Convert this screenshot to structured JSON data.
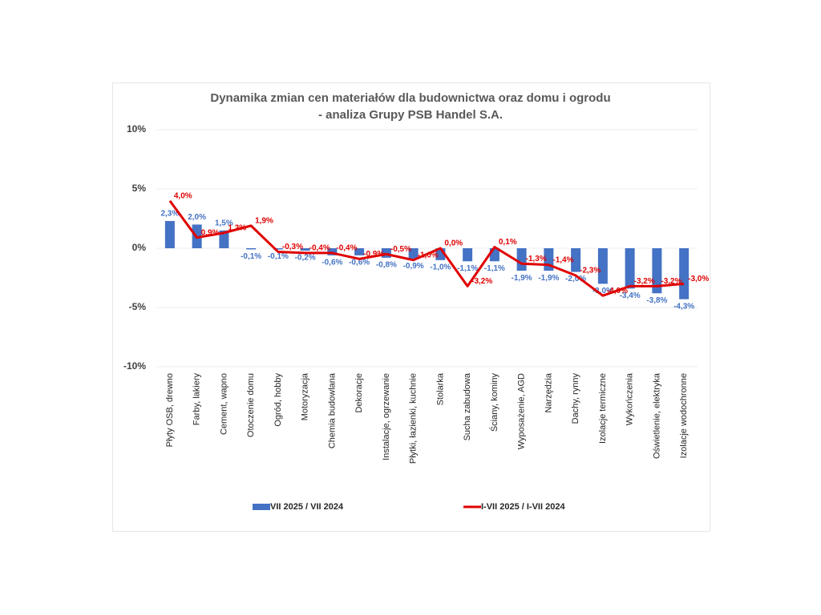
{
  "chart_data": {
    "type": "bar",
    "title": "Dynamika zmian cen materiałów dla budownictwa oraz domu i ogrodu",
    "subtitle": "- analiza Grupy PSB Handel S.A.",
    "categories": [
      "Płyty OSB, drewno",
      "Farby, lakiery",
      "Cement, wapno",
      "Otoczenie domu",
      "Ogród, hobby",
      "Motoryzacja",
      "Chemia budowlana",
      "Dekoracje",
      "Instalacje, ogrzewanie",
      "Płytki, łazienki, kuchnie",
      "Stolarka",
      "Sucha zabudowa",
      "Ściany, kominy",
      "Wyposażenie, AGD",
      "Narzędzia",
      "Dachy, rynny",
      "Izolacje termiczne",
      "Wykończenia",
      "Oświetlenie, elektryka",
      "Izolacje wodochronne"
    ],
    "series": [
      {
        "name": "VII 2025 / VII 2024",
        "type": "bar",
        "color": "#4472c4",
        "values": [
          2.3,
          2.0,
          1.5,
          -0.1,
          -0.1,
          -0.2,
          -0.6,
          -0.6,
          -0.8,
          -0.9,
          -1.0,
          -1.1,
          -1.1,
          -1.9,
          -1.9,
          -2.0,
          -3.0,
          -3.4,
          -3.8,
          -4.3
        ],
        "value_labels": [
          "2,3%",
          "2,0%",
          "1,5%",
          "-0,1%",
          "-0,1%",
          "-0,2%",
          "-0,6%",
          "-0,6%",
          "-0,8%",
          "-0,9%",
          "-1,0%",
          "-1,1%",
          "-1,1%",
          "-1,9%",
          "-1,9%",
          "-2,0%",
          "-3,0%",
          "-3,4%",
          "-3,8%",
          "-4,3%"
        ]
      },
      {
        "name": "I-VII 2025 / I-VII 2024",
        "type": "line",
        "color": "#e00000",
        "values": [
          4.0,
          0.9,
          1.3,
          1.9,
          -0.3,
          -0.4,
          -0.4,
          -0.9,
          -0.5,
          -1.0,
          0.0,
          -3.2,
          0.1,
          -1.3,
          -1.4,
          -2.3,
          -4.0,
          -3.2,
          -3.2,
          -3.0
        ],
        "value_labels": [
          "4,0%",
          "0,9%",
          "1,3%",
          "1,9%",
          "-0,3%",
          "-0,4%",
          "-0,4%",
          "-0,9%",
          "-0,5%",
          "-1,0%",
          "0,0%",
          "-3,2%",
          "0,1%",
          "-1,3%",
          "-1,4%",
          "-2,3%",
          "-4,0%",
          "-3,2%",
          "-3,2%",
          "-3,0%"
        ]
      }
    ],
    "ylim": [
      -10,
      10
    ],
    "yticks": [
      {
        "value": -10,
        "label": "-10%"
      },
      {
        "value": -5,
        "label": "-5%"
      },
      {
        "value": 0,
        "label": "0%"
      },
      {
        "value": 5,
        "label": "5%"
      },
      {
        "value": 10,
        "label": "10%"
      }
    ],
    "grid": true,
    "legend": "bottom"
  }
}
